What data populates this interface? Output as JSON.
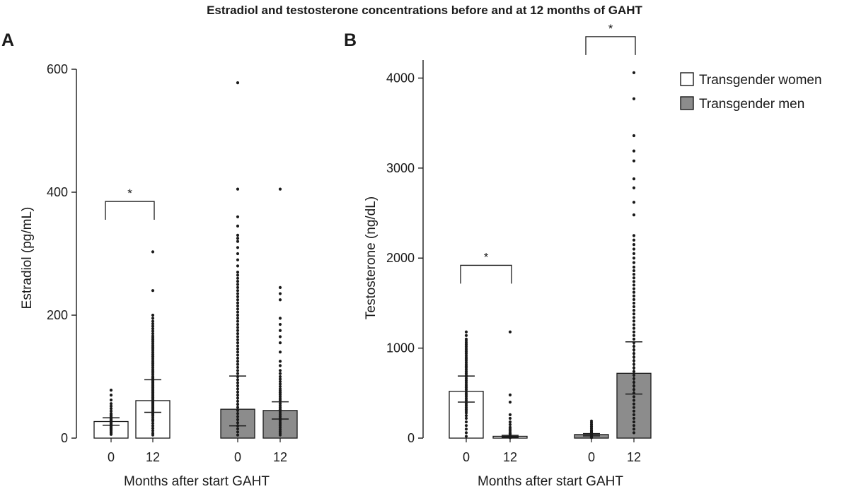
{
  "figure": {
    "title": "Estradiol and testosterone concentrations before and at 12 months of GAHT"
  },
  "legend": {
    "items": [
      {
        "label": "Transgender women",
        "color": "#ffffff"
      },
      {
        "label": "Transgender men",
        "color": "#8c8c8c"
      }
    ]
  },
  "colors": {
    "women_bar": "#ffffff",
    "men_bar": "#8c8c8c",
    "stroke": "#1a1a1a"
  },
  "chart_data": [
    {
      "panel": "A",
      "type": "bar",
      "xlabel": "Months after start GAHT",
      "ylabel": "Estradiol (pg/mL)",
      "ylim": [
        0,
        600
      ],
      "yticks": [
        0,
        200,
        400,
        600
      ],
      "grid": false,
      "legend_position": "none",
      "groups": [
        {
          "name": "Transgender women",
          "color": "#ffffff",
          "bars": [
            {
              "x": "0",
              "mean": 27,
              "iqr": [
                21,
                33
              ],
              "points": [
                6,
                8,
                10,
                12,
                14,
                15,
                16,
                17,
                18,
                19,
                20,
                21,
                22,
                23,
                24,
                25,
                26,
                27,
                28,
                29,
                30,
                31,
                32,
                34,
                36,
                38,
                40,
                44,
                48,
                52,
                56,
                62,
                70,
                78
              ]
            },
            {
              "x": "12",
              "mean": 61,
              "iqr": [
                42,
                95
              ],
              "points": [
                5,
                8,
                12,
                16,
                20,
                24,
                28,
                30,
                33,
                36,
                38,
                40,
                42,
                44,
                46,
                48,
                50,
                52,
                54,
                56,
                58,
                60,
                62,
                64,
                66,
                68,
                70,
                72,
                74,
                76,
                78,
                80,
                82,
                84,
                86,
                88,
                90,
                92,
                94,
                96,
                98,
                100,
                103,
                106,
                109,
                112,
                115,
                118,
                121,
                124,
                127,
                130,
                133,
                136,
                139,
                142,
                145,
                148,
                151,
                154,
                157,
                160,
                163,
                166,
                170,
                174,
                178,
                182,
                186,
                190,
                195,
                200,
                240,
                303
              ]
            }
          ]
        },
        {
          "name": "Transgender men",
          "color": "#8c8c8c",
          "bars": [
            {
              "x": "0",
              "mean": 47,
              "iqr": [
                20,
                101
              ],
              "points": [
                5,
                10,
                15,
                20,
                25,
                30,
                35,
                40,
                45,
                50,
                55,
                60,
                65,
                70,
                75,
                80,
                85,
                90,
                95,
                100,
                105,
                110,
                115,
                120,
                125,
                130,
                135,
                140,
                145,
                150,
                155,
                160,
                165,
                170,
                175,
                180,
                185,
                190,
                195,
                200,
                205,
                210,
                215,
                220,
                225,
                230,
                235,
                240,
                245,
                250,
                255,
                260,
                265,
                270,
                280,
                290,
                300,
                310,
                320,
                325,
                330,
                345,
                360,
                405,
                578
              ]
            },
            {
              "x": "12",
              "mean": 45,
              "iqr": [
                31,
                59
              ],
              "points": [
                5,
                8,
                11,
                14,
                17,
                20,
                23,
                26,
                29,
                32,
                35,
                38,
                41,
                44,
                47,
                50,
                53,
                56,
                59,
                62,
                65,
                68,
                71,
                74,
                77,
                80,
                84,
                88,
                92,
                96,
                100,
                105,
                110,
                118,
                125,
                140,
                155,
                165,
                175,
                185,
                195,
                225,
                235,
                245,
                405
              ]
            }
          ]
        }
      ],
      "significance": [
        {
          "between": [
            "Transgender women 0",
            "Transgender women 12"
          ],
          "label": "*",
          "at": 385
        }
      ]
    },
    {
      "panel": "B",
      "type": "bar",
      "xlabel": "Months after start GAHT",
      "ylabel": "Testosterone (ng/dL)",
      "ylim": [
        0,
        4200
      ],
      "yticks": [
        0,
        1000,
        2000,
        3000,
        4000
      ],
      "grid": false,
      "legend_position": "right",
      "groups": [
        {
          "name": "Transgender women",
          "color": "#ffffff",
          "bars": [
            {
              "x": "0",
              "mean": 520,
              "iqr": [
                400,
                690
              ],
              "points": [
                20,
                60,
                100,
                140,
                180,
                220,
                250,
                280,
                300,
                320,
                340,
                360,
                380,
                400,
                420,
                440,
                460,
                480,
                500,
                520,
                540,
                560,
                580,
                600,
                620,
                640,
                660,
                680,
                700,
                720,
                740,
                760,
                780,
                800,
                820,
                840,
                860,
                880,
                900,
                920,
                940,
                960,
                980,
                1000,
                1020,
                1040,
                1060,
                1080,
                1100,
                1140,
                1180
              ]
            },
            {
              "x": "12",
              "mean": 20,
              "iqr": [
                10,
                30
              ],
              "points": [
                5,
                8,
                10,
                12,
                15,
                18,
                20,
                25,
                30,
                35,
                40,
                50,
                60,
                80,
                100,
                120,
                150,
                180,
                220,
                260,
                400,
                480,
                1180
              ]
            }
          ]
        },
        {
          "name": "Transgender men",
          "color": "#8c8c8c",
          "bars": [
            {
              "x": "0",
              "mean": 40,
              "iqr": [
                25,
                50
              ],
              "points": [
                5,
                10,
                15,
                20,
                25,
                30,
                35,
                40,
                45,
                50,
                55,
                60,
                70,
                80,
                90,
                110,
                130,
                150,
                170,
                190
              ]
            },
            {
              "x": "12",
              "mean": 720,
              "iqr": [
                490,
                1070
              ],
              "points": [
                60,
                100,
                140,
                180,
                220,
                260,
                300,
                340,
                380,
                420,
                460,
                500,
                540,
                580,
                620,
                660,
                700,
                740,
                780,
                820,
                860,
                900,
                940,
                980,
                1020,
                1060,
                1100,
                1140,
                1180,
                1220,
                1260,
                1300,
                1340,
                1380,
                1420,
                1460,
                1500,
                1540,
                1580,
                1620,
                1660,
                1700,
                1740,
                1780,
                1820,
                1860,
                1900,
                1950,
                2000,
                2050,
                2100,
                2150,
                2200,
                2250,
                2480,
                2620,
                2780,
                2880,
                3080,
                3190,
                3360,
                3770,
                4060
              ]
            }
          ]
        }
      ],
      "significance": [
        {
          "between": [
            "Transgender women 0",
            "Transgender women 12"
          ],
          "label": "*",
          "at": 1920
        },
        {
          "between": [
            "Transgender men 0",
            "Transgender men 12"
          ],
          "label": "*",
          "at": 4460
        }
      ]
    }
  ]
}
